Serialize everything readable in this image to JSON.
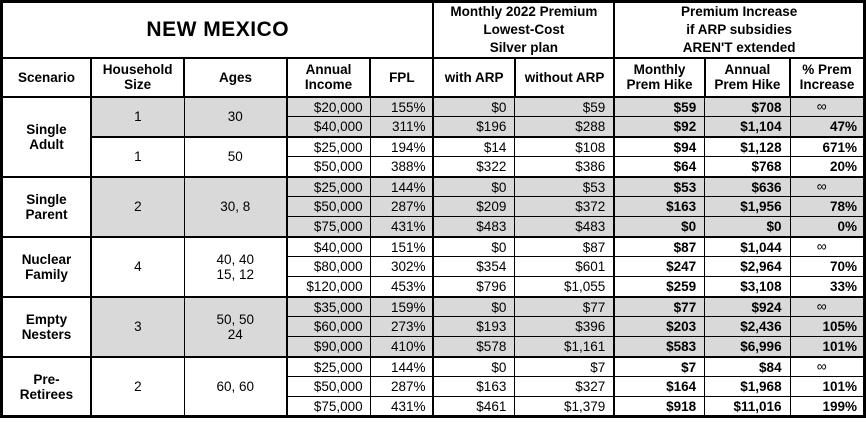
{
  "title": "NEW MEXICO",
  "header_groups": {
    "premium": "Monthly 2022 Premium\nLowest-Cost\nSilver plan",
    "increase": "Premium Increase\nif ARP subsidies\nAREN'T extended"
  },
  "columns": [
    "Scenario",
    "Household\nSize",
    "Ages",
    "Annual\nIncome",
    "FPL",
    "with ARP",
    "without ARP",
    "Monthly\nPrem Hike",
    "Annual\nPrem Hike",
    "% Prem\nIncrease"
  ],
  "colors": {
    "shaded_row": "#d9d9d9",
    "border": "#000000",
    "background": "#ffffff",
    "text": "#000000"
  },
  "infinity_symbol": "∞",
  "scenarios": [
    {
      "name": "Single\nAdult",
      "groups": [
        {
          "household_size": "1",
          "ages": "30",
          "shaded": true,
          "rows": [
            {
              "income": "$20,000",
              "fpl": "155%",
              "with_arp": "$0",
              "without_arp": "$59",
              "monthly_hike": "$59",
              "annual_hike": "$708",
              "pct_increase": "∞"
            },
            {
              "income": "$40,000",
              "fpl": "311%",
              "with_arp": "$196",
              "without_arp": "$288",
              "monthly_hike": "$92",
              "annual_hike": "$1,104",
              "pct_increase": "47%"
            }
          ]
        },
        {
          "household_size": "1",
          "ages": "50",
          "shaded": false,
          "rows": [
            {
              "income": "$25,000",
              "fpl": "194%",
              "with_arp": "$14",
              "without_arp": "$108",
              "monthly_hike": "$94",
              "annual_hike": "$1,128",
              "pct_increase": "671%"
            },
            {
              "income": "$50,000",
              "fpl": "388%",
              "with_arp": "$322",
              "without_arp": "$386",
              "monthly_hike": "$64",
              "annual_hike": "$768",
              "pct_increase": "20%"
            }
          ]
        }
      ]
    },
    {
      "name": "Single\nParent",
      "groups": [
        {
          "household_size": "2",
          "ages": "30, 8",
          "shaded": true,
          "rows": [
            {
              "income": "$25,000",
              "fpl": "144%",
              "with_arp": "$0",
              "without_arp": "$53",
              "monthly_hike": "$53",
              "annual_hike": "$636",
              "pct_increase": "∞"
            },
            {
              "income": "$50,000",
              "fpl": "287%",
              "with_arp": "$209",
              "without_arp": "$372",
              "monthly_hike": "$163",
              "annual_hike": "$1,956",
              "pct_increase": "78%"
            },
            {
              "income": "$75,000",
              "fpl": "431%",
              "with_arp": "$483",
              "without_arp": "$483",
              "monthly_hike": "$0",
              "annual_hike": "$0",
              "pct_increase": "0%"
            }
          ]
        }
      ]
    },
    {
      "name": "Nuclear\nFamily",
      "groups": [
        {
          "household_size": "4",
          "ages": "40, 40\n15, 12",
          "shaded": false,
          "rows": [
            {
              "income": "$40,000",
              "fpl": "151%",
              "with_arp": "$0",
              "without_arp": "$87",
              "monthly_hike": "$87",
              "annual_hike": "$1,044",
              "pct_increase": "∞"
            },
            {
              "income": "$80,000",
              "fpl": "302%",
              "with_arp": "$354",
              "without_arp": "$601",
              "monthly_hike": "$247",
              "annual_hike": "$2,964",
              "pct_increase": "70%"
            },
            {
              "income": "$120,000",
              "fpl": "453%",
              "with_arp": "$796",
              "without_arp": "$1,055",
              "monthly_hike": "$259",
              "annual_hike": "$3,108",
              "pct_increase": "33%"
            }
          ]
        }
      ]
    },
    {
      "name": "Empty\nNesters",
      "groups": [
        {
          "household_size": "3",
          "ages": "50, 50\n24",
          "shaded": true,
          "rows": [
            {
              "income": "$35,000",
              "fpl": "159%",
              "with_arp": "$0",
              "without_arp": "$77",
              "monthly_hike": "$77",
              "annual_hike": "$924",
              "pct_increase": "∞"
            },
            {
              "income": "$60,000",
              "fpl": "273%",
              "with_arp": "$193",
              "without_arp": "$396",
              "monthly_hike": "$203",
              "annual_hike": "$2,436",
              "pct_increase": "105%"
            },
            {
              "income": "$90,000",
              "fpl": "410%",
              "with_arp": "$578",
              "without_arp": "$1,161",
              "monthly_hike": "$583",
              "annual_hike": "$6,996",
              "pct_increase": "101%"
            }
          ]
        }
      ]
    },
    {
      "name": "Pre-\nRetirees",
      "groups": [
        {
          "household_size": "2",
          "ages": "60, 60",
          "shaded": false,
          "rows": [
            {
              "income": "$25,000",
              "fpl": "144%",
              "with_arp": "$0",
              "without_arp": "$7",
              "monthly_hike": "$7",
              "annual_hike": "$84",
              "pct_increase": "∞"
            },
            {
              "income": "$50,000",
              "fpl": "287%",
              "with_arp": "$163",
              "without_arp": "$327",
              "monthly_hike": "$164",
              "annual_hike": "$1,968",
              "pct_increase": "101%"
            },
            {
              "income": "$75,000",
              "fpl": "431%",
              "with_arp": "$461",
              "without_arp": "$1,379",
              "monthly_hike": "$918",
              "annual_hike": "$11,016",
              "pct_increase": "199%"
            }
          ]
        }
      ]
    }
  ]
}
